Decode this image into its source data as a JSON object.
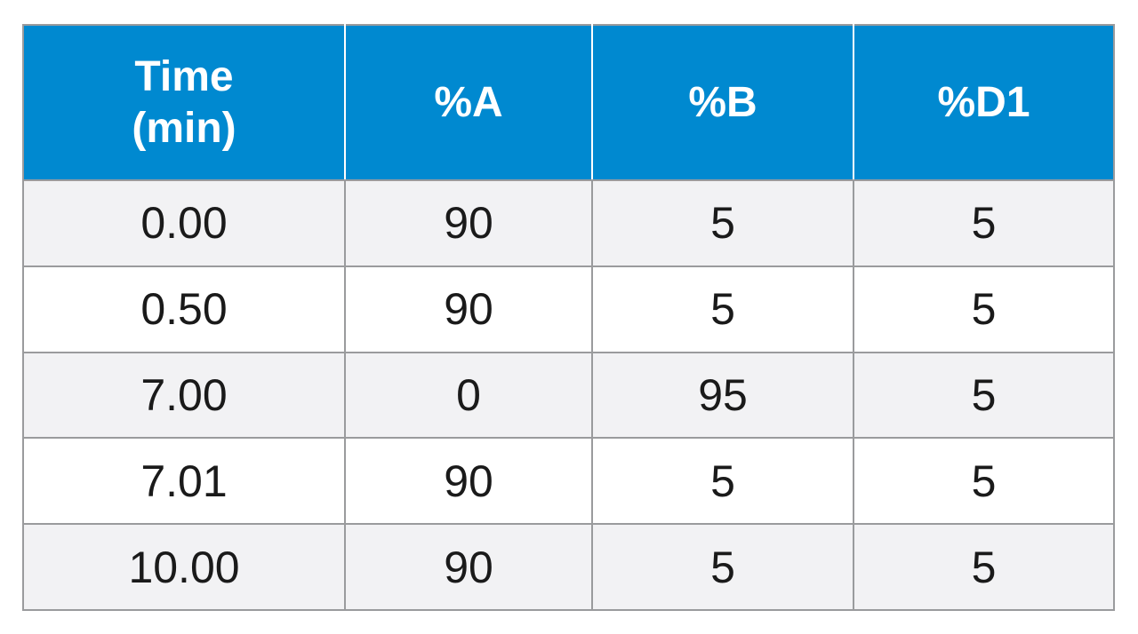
{
  "table": {
    "header": {
      "time_line1": "Time",
      "time_line2": "(min)",
      "col_a": "%A",
      "col_b": "%B",
      "col_d1": "%D1"
    },
    "rows": [
      {
        "time": "0.00",
        "a": "90",
        "b": "5",
        "d1": "5"
      },
      {
        "time": "0.50",
        "a": "90",
        "b": "5",
        "d1": "5"
      },
      {
        "time": "7.00",
        "a": "0",
        "b": "95",
        "d1": "5"
      },
      {
        "time": "7.01",
        "a": "90",
        "b": "5",
        "d1": "5"
      },
      {
        "time": "10.00",
        "a": "90",
        "b": "5",
        "d1": "5"
      }
    ],
    "colors": {
      "header_bg": "#0089d0",
      "header_text": "#ffffff",
      "row_shade": "#f2f2f4",
      "border": "#9a9b9d"
    }
  }
}
